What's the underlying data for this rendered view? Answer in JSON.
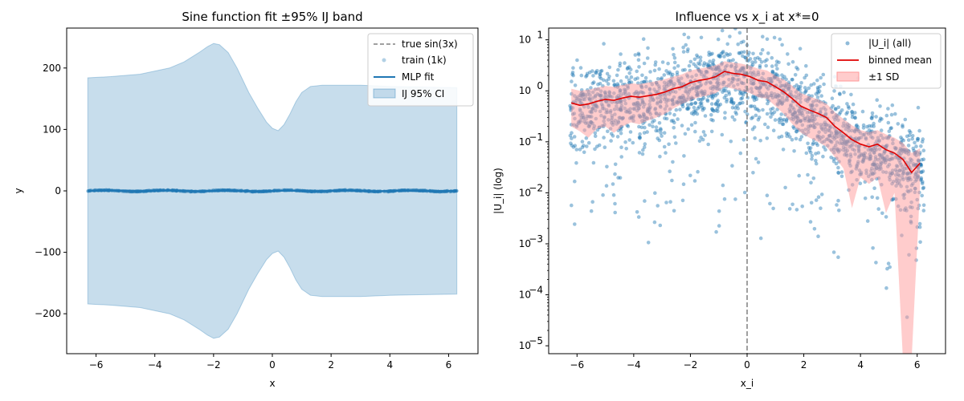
{
  "chart_data": [
    {
      "type": "line",
      "title": "Sine function fit ±95% IJ band",
      "xlabel": "x",
      "ylabel": "y",
      "xlim": [
        -7,
        7
      ],
      "ylim": [
        -265,
        265
      ],
      "xticks": [
        -6,
        -4,
        -2,
        0,
        2,
        4,
        6
      ],
      "xtick_labels": [
        "−6",
        "−4",
        "−2",
        "0",
        "2",
        "4",
        "6"
      ],
      "yticks": [
        -200,
        -100,
        0,
        100,
        200
      ],
      "ytick_labels": [
        "−200",
        "−100",
        "0",
        "100",
        "200"
      ],
      "grid": false,
      "legend_position": "top-right",
      "legend": [
        "true sin(3x)",
        "train (1k)",
        "MLP fit",
        "IJ 95% CI"
      ],
      "colors": {
        "band": "#1f77b4",
        "fit": "#1f77b4",
        "true": "#808080",
        "train": "#1f77b4"
      },
      "band": {
        "x": [
          -6.28,
          -5.5,
          -4.5,
          -3.5,
          -3.0,
          -2.5,
          -2.2,
          -2.0,
          -1.8,
          -1.5,
          -1.2,
          -1.0,
          -0.8,
          -0.5,
          -0.2,
          0.0,
          0.2,
          0.4,
          0.6,
          0.8,
          1.0,
          1.3,
          1.7,
          2.0,
          3.0,
          4.0,
          5.0,
          6.28
        ],
        "upper": [
          184,
          186,
          190,
          200,
          210,
          225,
          235,
          240,
          238,
          225,
          200,
          180,
          160,
          135,
          112,
          102,
          98,
          108,
          125,
          145,
          160,
          170,
          172,
          172,
          172,
          170,
          169,
          168
        ]
      },
      "series": [
        {
          "name": "MLP fit",
          "x": [
            -6.28,
            -5.5,
            -4.5,
            -3.5,
            -2.5,
            -1.5,
            -0.5,
            0.5,
            1.5,
            2.5,
            3.5,
            4.5,
            5.5,
            6.28
          ],
          "y": [
            0,
            0.8,
            -0.5,
            0.9,
            -0.7,
            0.6,
            -0.8,
            0.7,
            -0.6,
            0.9,
            -0.8,
            0.6,
            -0.5,
            0
          ]
        },
        {
          "name": "true sin(3x)",
          "function": "sin(3x)"
        }
      ]
    },
    {
      "type": "scatter",
      "title": "Influence vs x_i at x*=0",
      "xlabel": "x_i",
      "ylabel": "|U_i| (log)",
      "xlim": [
        -7,
        7
      ],
      "ylog": true,
      "ylim": [
        7e-06,
        17
      ],
      "xticks": [
        -6,
        -4,
        -2,
        0,
        2,
        4,
        6
      ],
      "xtick_labels": [
        "−6",
        "−4",
        "−2",
        "0",
        "2",
        "4",
        "6"
      ],
      "yticks": [
        1e-05,
        0.0001,
        0.001,
        0.01,
        0.1,
        1,
        10
      ],
      "ytick_labels": [
        [
          "10",
          "−5"
        ],
        [
          "10",
          "−4"
        ],
        [
          "10",
          "−3"
        ],
        [
          "10",
          "−2"
        ],
        [
          "10",
          "−1"
        ],
        [
          "10",
          "0"
        ],
        [
          "10",
          "1"
        ]
      ],
      "vline_x": 0,
      "grid": false,
      "legend_position": "top-right",
      "legend": [
        "|U_i| (all)",
        "binned mean",
        "±1 SD"
      ],
      "colors": {
        "points": "#1f77b4",
        "mean": "#e00000",
        "sd": "#ff9999",
        "vline": "#808080"
      },
      "binned_mean": {
        "x": [
          -6.2,
          -5.9,
          -5.6,
          -5.3,
          -5.0,
          -4.7,
          -4.4,
          -4.1,
          -3.8,
          -3.5,
          -3.2,
          -2.9,
          -2.6,
          -2.3,
          -2.0,
          -1.7,
          -1.4,
          -1.1,
          -0.8,
          -0.5,
          -0.2,
          0.1,
          0.4,
          0.7,
          1.0,
          1.3,
          1.6,
          1.9,
          2.2,
          2.5,
          2.8,
          3.1,
          3.4,
          3.7,
          4.0,
          4.3,
          4.6,
          4.9,
          5.2,
          5.5,
          5.8,
          6.1
        ],
        "y": [
          0.58,
          0.52,
          0.55,
          0.62,
          0.68,
          0.65,
          0.72,
          0.78,
          0.75,
          0.8,
          0.85,
          0.95,
          1.1,
          1.2,
          1.45,
          1.6,
          1.7,
          1.9,
          2.4,
          2.2,
          2.1,
          1.9,
          1.6,
          1.5,
          1.2,
          0.95,
          0.7,
          0.5,
          0.42,
          0.36,
          0.3,
          0.2,
          0.15,
          0.11,
          0.09,
          0.08,
          0.09,
          0.07,
          0.06,
          0.045,
          0.025,
          0.038
        ]
      },
      "sd_band": {
        "upper": [
          1.1,
          1.0,
          1.05,
          1.15,
          1.25,
          1.2,
          1.3,
          1.4,
          1.35,
          1.45,
          1.55,
          1.7,
          1.9,
          2.1,
          2.5,
          2.7,
          2.9,
          3.2,
          3.8,
          3.6,
          3.4,
          3.1,
          2.7,
          2.5,
          2.0,
          1.65,
          1.25,
          0.9,
          0.78,
          0.68,
          0.56,
          0.38,
          0.28,
          0.21,
          0.17,
          0.155,
          0.17,
          0.14,
          0.12,
          0.095,
          0.06,
          0.075
        ],
        "lower": [
          0.2,
          0.16,
          0.12,
          0.18,
          0.2,
          0.15,
          0.2,
          0.24,
          0.22,
          0.26,
          0.3,
          0.35,
          0.45,
          0.55,
          0.65,
          0.75,
          0.8,
          0.9,
          1.2,
          1.1,
          1.0,
          0.9,
          0.75,
          0.7,
          0.5,
          0.35,
          0.22,
          0.15,
          0.12,
          0.1,
          0.08,
          0.05,
          0.03,
          0.005,
          0.02,
          0.015,
          0.02,
          0.004,
          0.01,
          5e-06,
          5e-06,
          0.012
        ]
      },
      "points_count": 3000
    }
  ]
}
